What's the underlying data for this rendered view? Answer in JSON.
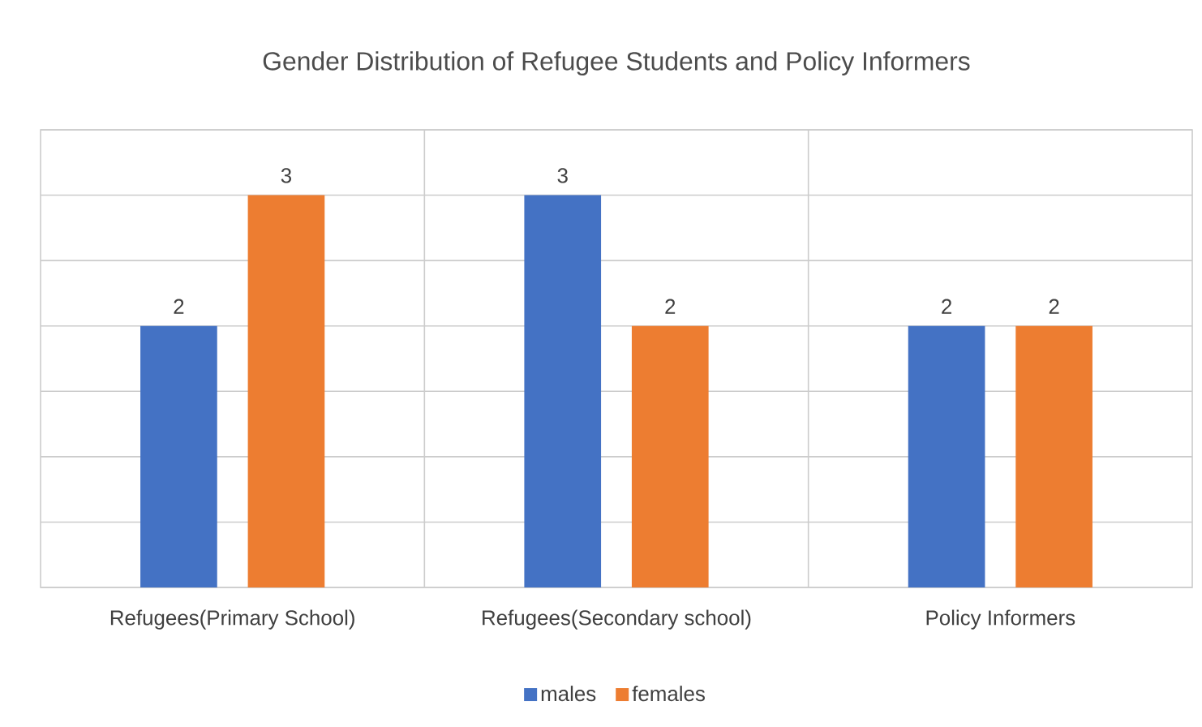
{
  "chart_data": {
    "type": "bar",
    "title": "Gender Distribution of Refugee Students and Policy Informers",
    "categories": [
      "Refugees(Primary School)",
      "Refugees(Secondary school)",
      "Policy Informers"
    ],
    "series": [
      {
        "name": "males",
        "color": "#4472c4",
        "values": [
          2,
          3,
          2
        ]
      },
      {
        "name": "females",
        "color": "#ed7d31",
        "values": [
          3,
          2,
          2
        ]
      }
    ],
    "ylim": [
      0,
      3.5
    ],
    "yticks": [
      {
        "value": 0,
        "label": null
      },
      {
        "value": 0.5,
        "label": null
      },
      {
        "value": 1,
        "label": null
      },
      {
        "value": 1.5,
        "label": null
      },
      {
        "value": 2,
        "label": null
      },
      {
        "value": 2.5,
        "label": null
      },
      {
        "value": 3,
        "label": null
      },
      {
        "value": 3.5,
        "label": null
      }
    ],
    "tick_labels": "x",
    "grid": true,
    "legend": "bottom",
    "data_labels": true
  }
}
